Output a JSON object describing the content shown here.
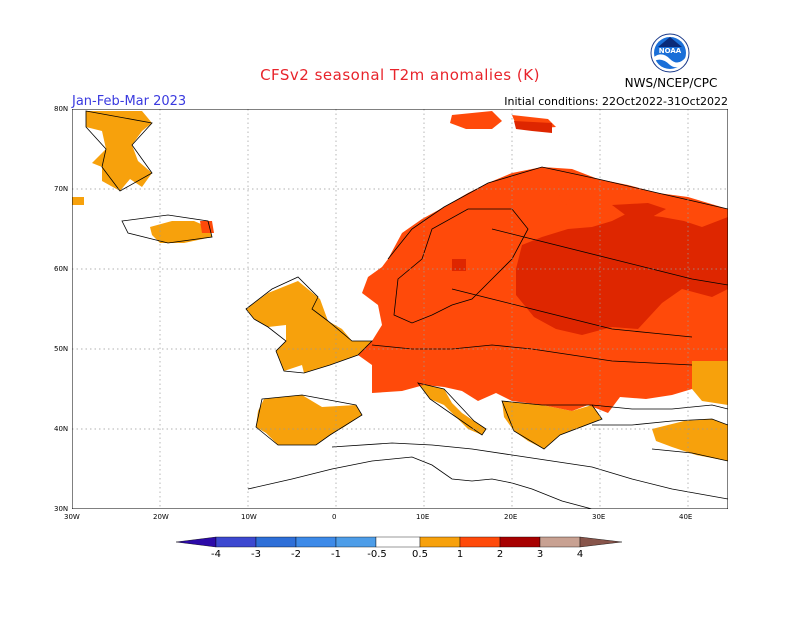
{
  "header": {
    "title": "CFSv2 seasonal T2m anomalies (K)",
    "period": "Jan-Feb-Mar 2023",
    "initial_conditions": "Initial conditions: 22Oct2022-31Oct2022",
    "agency": "NWS/NCEP/CPC",
    "logo_text": "NOAA"
  },
  "axes": {
    "lat_labels": [
      "80N",
      "70N",
      "60N",
      "50N",
      "40N",
      "30N"
    ],
    "lon_labels": [
      "30W",
      "20W",
      "10W",
      "0",
      "10E",
      "20E",
      "30E",
      "40E"
    ]
  },
  "colorbar": {
    "labels": [
      "-4",
      "-3",
      "-2",
      "-1",
      "-0.5",
      "0.5",
      "1",
      "2",
      "3",
      "4"
    ],
    "colors": [
      "#2c0aa8",
      "#3c48d0",
      "#2e6fd8",
      "#4d9de8",
      "#7fbff5",
      "#ffffff",
      "#f7a10c",
      "#ff4a0a",
      "#de2600",
      "#a70000",
      "#c8a192",
      "#87544a"
    ]
  },
  "colors": {
    "title": "#e8242b",
    "period": "#3a3adf",
    "anomaly_05_1": "#f7a10c",
    "anomaly_1_2": "#ff4a0a",
    "anomaly_2_3": "#de2600",
    "anomaly_3_4": "#a70000"
  }
}
